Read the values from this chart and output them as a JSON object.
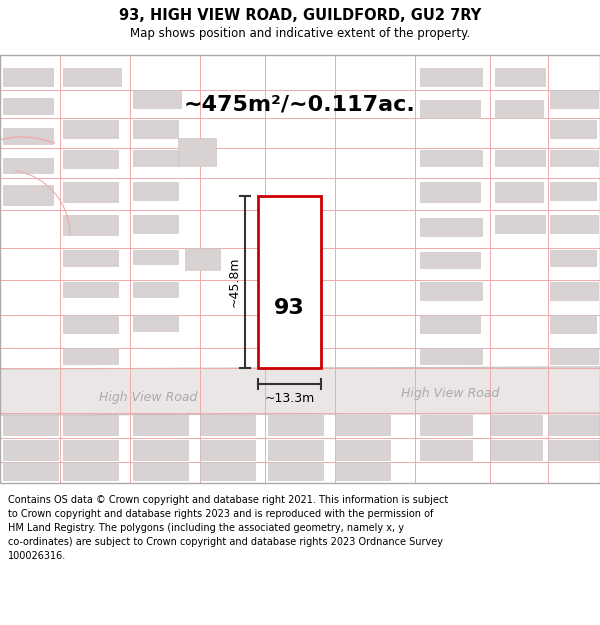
{
  "title1": "93, HIGH VIEW ROAD, GUILDFORD, GU2 7RY",
  "title2": "Map shows position and indicative extent of the property.",
  "area_text": "~475m²/~0.117ac.",
  "prop_num": "93",
  "h_label": "~45.8m",
  "w_label": "~13.3m",
  "road_text": "High View Road",
  "footer": "Contains OS data © Crown copyright and database right 2021. This information is subject to Crown copyright and database rights 2023 and is reproduced with the permission of HM Land Registry. The polygons (including the associated geometry, namely x, y co-ordinates) are subject to Crown copyright and database rights 2023 Ordnance Survey 100026316.",
  "red": "#cc0000",
  "dark": "#333333",
  "pink_line": "#f0aaaa",
  "bld_face": "#d8d2d2",
  "bld_edge": "#c8c0c0",
  "road_fill": "#eae6e6",
  "road_edge": "#c8c2c2",
  "road_label_color": "#aaaaaa"
}
